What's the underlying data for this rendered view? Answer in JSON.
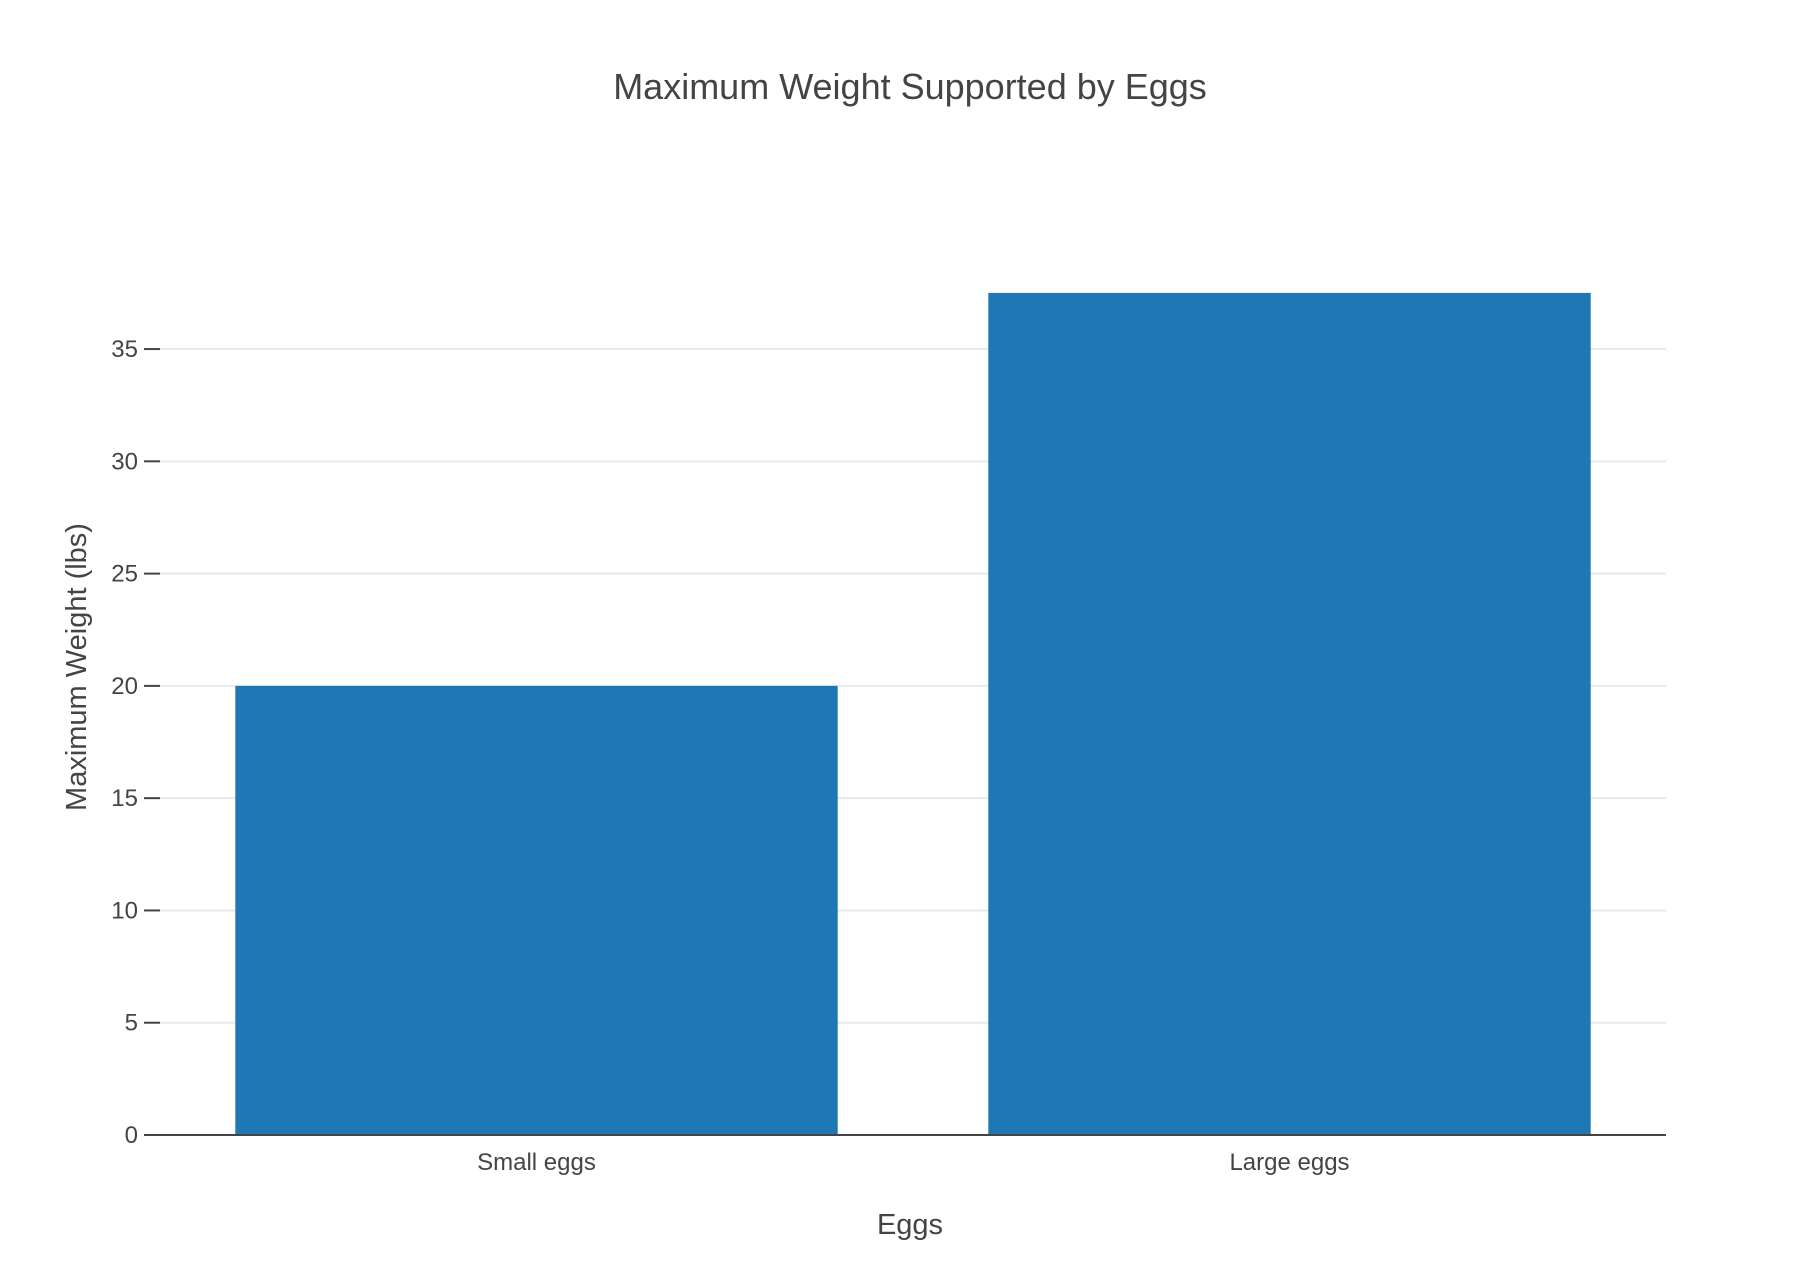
{
  "chart_data": {
    "type": "bar",
    "title": "Maximum Weight Supported by Eggs",
    "xlabel": "Eggs",
    "ylabel": "Maximum Weight (lbs)",
    "categories": [
      "Small eggs",
      "Large eggs"
    ],
    "values": [
      20,
      37.5
    ],
    "ylim": [
      0,
      39.5
    ],
    "yticks": [
      0,
      5,
      10,
      15,
      20,
      25,
      30,
      35
    ],
    "ytick_labels": [
      "0",
      "5",
      "10",
      "15",
      "20",
      "25",
      "30",
      "35"
    ],
    "grid": true,
    "bar_color": "#1f77b4",
    "legend": "none"
  }
}
